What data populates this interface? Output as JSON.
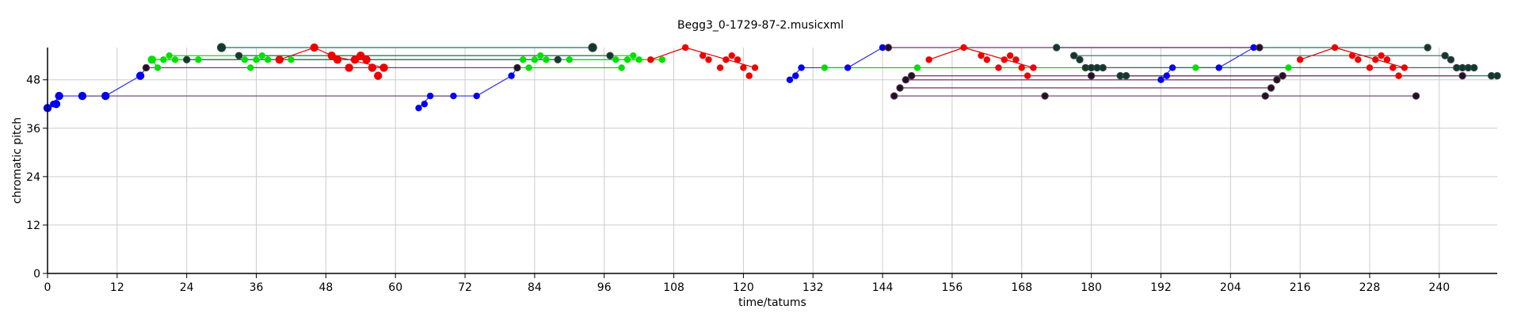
{
  "chart_data": {
    "type": "scatter",
    "title": "Begg3_0-1729-87-2.musicxml",
    "xlabel": "time/tatums",
    "ylabel": "chromatic pitch",
    "xlim": [
      0,
      250
    ],
    "ylim": [
      0,
      56
    ],
    "x_ticks": [
      0,
      12,
      24,
      36,
      48,
      60,
      72,
      84,
      96,
      108,
      120,
      132,
      144,
      156,
      168,
      180,
      192,
      204,
      216,
      228,
      240
    ],
    "y_ticks": [
      0,
      12,
      24,
      36,
      48
    ],
    "grid": true,
    "colors": {
      "blue": "#0000ee",
      "green": "#00e000",
      "red": "#ee0000",
      "dark_teal": "#0e3a30",
      "dark_purple": "#2a0a2a",
      "link_blue": "#3030e0",
      "link_green": "#00cc00",
      "link_red": "#dd0000",
      "link_teal": "#2e6a66",
      "link_purple": "#6a3a6a",
      "grid": "#cccccc"
    },
    "series": [
      {
        "color": "blue",
        "points": [
          [
            0,
            41,
            6
          ],
          [
            1,
            42,
            5
          ],
          [
            1.5,
            42,
            6
          ],
          [
            2,
            44,
            6
          ],
          [
            6,
            44,
            6
          ],
          [
            10,
            44,
            6
          ],
          [
            16,
            49,
            6
          ],
          [
            64,
            41,
            5
          ],
          [
            65,
            42,
            5
          ],
          [
            66,
            44,
            5
          ],
          [
            70,
            44,
            5
          ],
          [
            74,
            44,
            5
          ],
          [
            80,
            49,
            5
          ],
          [
            128,
            48,
            5
          ],
          [
            129,
            49,
            5
          ],
          [
            130,
            51,
            5
          ],
          [
            138,
            51,
            5
          ],
          [
            144,
            56,
            5
          ],
          [
            193,
            49,
            5
          ],
          [
            194,
            51,
            5
          ],
          [
            192,
            48,
            5
          ],
          [
            202,
            51,
            5
          ],
          [
            208,
            56,
            5
          ]
        ],
        "links": [
          [
            0,
            41,
            1,
            42
          ],
          [
            1,
            42,
            2,
            44
          ],
          [
            2,
            44,
            10,
            44
          ],
          [
            10,
            44,
            16,
            49
          ],
          [
            16,
            49,
            17,
            51
          ],
          [
            64,
            41,
            66,
            44
          ],
          [
            66,
            44,
            74,
            44
          ],
          [
            74,
            44,
            80,
            49
          ],
          [
            80,
            49,
            81,
            51
          ],
          [
            128,
            48,
            130,
            51
          ],
          [
            130,
            51,
            138,
            51
          ],
          [
            138,
            51,
            144,
            56
          ],
          [
            192,
            48,
            194,
            51
          ],
          [
            194,
            51,
            202,
            51
          ],
          [
            202,
            51,
            208,
            56
          ]
        ]
      },
      {
        "color": "green",
        "points": [
          [
            18,
            53,
            6
          ],
          [
            19,
            51,
            5
          ],
          [
            20,
            53,
            5
          ],
          [
            21,
            54,
            5
          ],
          [
            22,
            53,
            5
          ],
          [
            26,
            53,
            5
          ],
          [
            34,
            53,
            5
          ],
          [
            35,
            51,
            5
          ],
          [
            36,
            53,
            5
          ],
          [
            37,
            54,
            5
          ],
          [
            38,
            53,
            5
          ],
          [
            42,
            53,
            5
          ],
          [
            82,
            53,
            5
          ],
          [
            83,
            51,
            5
          ],
          [
            84,
            53,
            5
          ],
          [
            85,
            54,
            5
          ],
          [
            86,
            53,
            5
          ],
          [
            90,
            53,
            5
          ],
          [
            98,
            53,
            5
          ],
          [
            99,
            51,
            5
          ],
          [
            100,
            53,
            5
          ],
          [
            101,
            54,
            5
          ],
          [
            102,
            53,
            5
          ],
          [
            106,
            53,
            5
          ],
          [
            134,
            51,
            5
          ],
          [
            150,
            51,
            5
          ],
          [
            198,
            51,
            5
          ],
          [
            214,
            51,
            5
          ]
        ],
        "links": [
          [
            18,
            53,
            19,
            51
          ],
          [
            19,
            51,
            99,
            51
          ],
          [
            18,
            53,
            106,
            53
          ],
          [
            21,
            54,
            101,
            54
          ],
          [
            134,
            51,
            150,
            51
          ],
          [
            150,
            51,
            214,
            51
          ],
          [
            198,
            51,
            214,
            51
          ]
        ]
      },
      {
        "color": "red",
        "points": [
          [
            40,
            53,
            6
          ],
          [
            46,
            56,
            6
          ],
          [
            49,
            54,
            6
          ],
          [
            50,
            53,
            6
          ],
          [
            52,
            51,
            6
          ],
          [
            53,
            53,
            6
          ],
          [
            54,
            54,
            6
          ],
          [
            55,
            53,
            6
          ],
          [
            56,
            51,
            6
          ],
          [
            57,
            49,
            6
          ],
          [
            58,
            51,
            6
          ],
          [
            104,
            53,
            5
          ],
          [
            110,
            56,
            5
          ],
          [
            113,
            54,
            5
          ],
          [
            114,
            53,
            5
          ],
          [
            116,
            51,
            5
          ],
          [
            117,
            53,
            5
          ],
          [
            118,
            54,
            5
          ],
          [
            119,
            53,
            5
          ],
          [
            120,
            51,
            5
          ],
          [
            121,
            49,
            5
          ],
          [
            122,
            51,
            5
          ],
          [
            152,
            53,
            5
          ],
          [
            158,
            56,
            5
          ],
          [
            161,
            54,
            5
          ],
          [
            162,
            53,
            5
          ],
          [
            164,
            51,
            5
          ],
          [
            165,
            53,
            5
          ],
          [
            166,
            54,
            5
          ],
          [
            167,
            53,
            5
          ],
          [
            168,
            51,
            5
          ],
          [
            169,
            49,
            5
          ],
          [
            170,
            51,
            5
          ],
          [
            216,
            53,
            5
          ],
          [
            222,
            56,
            5
          ],
          [
            225,
            54,
            5
          ],
          [
            226,
            53,
            5
          ],
          [
            228,
            51,
            5
          ],
          [
            229,
            53,
            5
          ],
          [
            230,
            54,
            5
          ],
          [
            231,
            53,
            5
          ],
          [
            232,
            51,
            5
          ],
          [
            233,
            49,
            5
          ],
          [
            234,
            51,
            5
          ]
        ],
        "links": [
          [
            40,
            53,
            46,
            56
          ],
          [
            46,
            56,
            49,
            54
          ],
          [
            49,
            54,
            58,
            51
          ],
          [
            104,
            53,
            110,
            56
          ],
          [
            110,
            56,
            122,
            51
          ],
          [
            152,
            53,
            158,
            56
          ],
          [
            158,
            56,
            170,
            51
          ],
          [
            216,
            53,
            222,
            56
          ],
          [
            222,
            56,
            234,
            51
          ]
        ]
      },
      {
        "color": "dark_teal",
        "points": [
          [
            30,
            56,
            6
          ],
          [
            33,
            54,
            5
          ],
          [
            24,
            53,
            5
          ],
          [
            94,
            56,
            6
          ],
          [
            97,
            54,
            5
          ],
          [
            88,
            53,
            5
          ],
          [
            174,
            56,
            5
          ],
          [
            177,
            54,
            5
          ],
          [
            178,
            53,
            5
          ],
          [
            179,
            51,
            5
          ],
          [
            180,
            51,
            5
          ],
          [
            181,
            51,
            5
          ],
          [
            182,
            51,
            5
          ],
          [
            185,
            49,
            5
          ],
          [
            186,
            49,
            5
          ],
          [
            238,
            56,
            5
          ],
          [
            241,
            54,
            5
          ],
          [
            242,
            53,
            5
          ],
          [
            243,
            51,
            5
          ],
          [
            244,
            51,
            5
          ],
          [
            245,
            51,
            5
          ],
          [
            246,
            51,
            5
          ],
          [
            249,
            49,
            5
          ],
          [
            250,
            49,
            5
          ]
        ],
        "links": [
          [
            30,
            56,
            94,
            56
          ],
          [
            33,
            54,
            97,
            54
          ],
          [
            24,
            53,
            88,
            53
          ],
          [
            174,
            56,
            238,
            56
          ],
          [
            177,
            54,
            241,
            54
          ],
          [
            179,
            51,
            243,
            51
          ],
          [
            182,
            51,
            246,
            51
          ],
          [
            185,
            49,
            249,
            49
          ]
        ]
      },
      {
        "color": "dark_purple",
        "points": [
          [
            17,
            51,
            5
          ],
          [
            81,
            51,
            5
          ],
          [
            145,
            56,
            5
          ],
          [
            146,
            44,
            5
          ],
          [
            147,
            46,
            5
          ],
          [
            148,
            48,
            5
          ],
          [
            149,
            49,
            5
          ],
          [
            172,
            44,
            5
          ],
          [
            180,
            49,
            5
          ],
          [
            209,
            56,
            5
          ],
          [
            210,
            44,
            5
          ],
          [
            211,
            46,
            5
          ],
          [
            212,
            48,
            5
          ],
          [
            213,
            49,
            5
          ],
          [
            236,
            44,
            5
          ],
          [
            244,
            49,
            5
          ]
        ],
        "links": [
          [
            17,
            51,
            81,
            51
          ],
          [
            6,
            44,
            70,
            44
          ],
          [
            145,
            56,
            209,
            56
          ],
          [
            146,
            44,
            236,
            44
          ],
          [
            147,
            46,
            211,
            46
          ],
          [
            148,
            48,
            212,
            48
          ],
          [
            149,
            49,
            213,
            49
          ],
          [
            180,
            49,
            244,
            49
          ]
        ]
      }
    ]
  }
}
